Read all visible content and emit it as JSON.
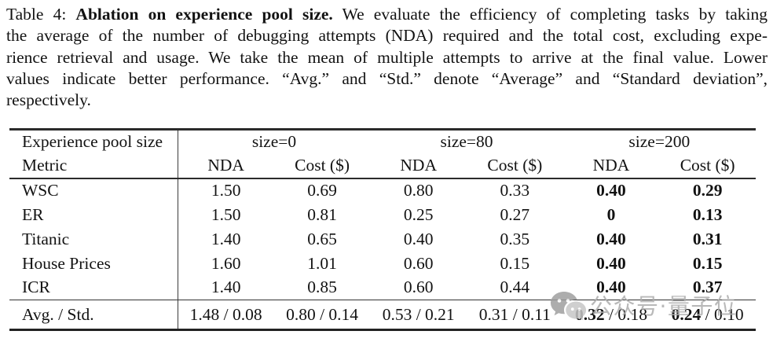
{
  "caption": {
    "line1_prefix": "Table 4: ",
    "line1_bold": "Ablation on experience pool size.",
    "line1_suffix": " We evaluate the efficiency of completing tasks by taking",
    "line2": "the average of the number of debugging attempts (NDA) required and the total cost, excluding expe-",
    "line3": "rience retrieval and usage. We take the mean of multiple attempts to arrive at the final value. Lower",
    "line4": "values indicate better performance. “Avg.” and “Std.” denote “Average” and “Standard deviation”,",
    "line5": "respectively."
  },
  "table": {
    "corner_header": [
      "Experience pool size",
      "Metric"
    ],
    "group_headers": [
      "size=0",
      "size=80",
      "size=200"
    ],
    "sub_headers": [
      "NDA",
      "Cost ($)",
      "NDA",
      "Cost ($)",
      "NDA",
      "Cost ($)"
    ],
    "rows": [
      {
        "metric": "WSC",
        "values": [
          "1.50",
          "0.69",
          "0.80",
          "0.33",
          "0.40",
          "0.29"
        ],
        "bold_cols": [
          4,
          5
        ]
      },
      {
        "metric": "ER",
        "values": [
          "1.50",
          "0.81",
          "0.25",
          "0.27",
          "0",
          "0.13"
        ],
        "bold_cols": [
          4,
          5
        ]
      },
      {
        "metric": "Titanic",
        "values": [
          "1.40",
          "0.65",
          "0.40",
          "0.35",
          "0.40",
          "0.31"
        ],
        "bold_cols": [
          4,
          5
        ]
      },
      {
        "metric": "House Prices",
        "values": [
          "1.60",
          "1.01",
          "0.60",
          "0.15",
          "0.40",
          "0.15"
        ],
        "bold_cols": [
          4,
          5
        ]
      },
      {
        "metric": "ICR",
        "values": [
          "1.40",
          "0.85",
          "0.60",
          "0.44",
          "0.40",
          "0.37"
        ],
        "bold_cols": [
          4,
          5
        ]
      }
    ],
    "footer": {
      "label": "Avg. / Std.",
      "separator": " / ",
      "cells": [
        {
          "avg": "1.48",
          "std": "0.08",
          "avg_bold": false
        },
        {
          "avg": "0.80",
          "std": "0.14",
          "avg_bold": false
        },
        {
          "avg": "0.53",
          "std": "0.21",
          "avg_bold": false
        },
        {
          "avg": "0.31",
          "std": "0.11",
          "avg_bold": false
        },
        {
          "avg": "0.32",
          "std": "0.18",
          "avg_bold": true
        },
        {
          "avg": "0.24",
          "std": "0.10",
          "avg_bold": true
        }
      ]
    }
  },
  "watermark": {
    "icon": "wechat-icon",
    "text": "公众号·量子位",
    "color": "#adadad"
  }
}
